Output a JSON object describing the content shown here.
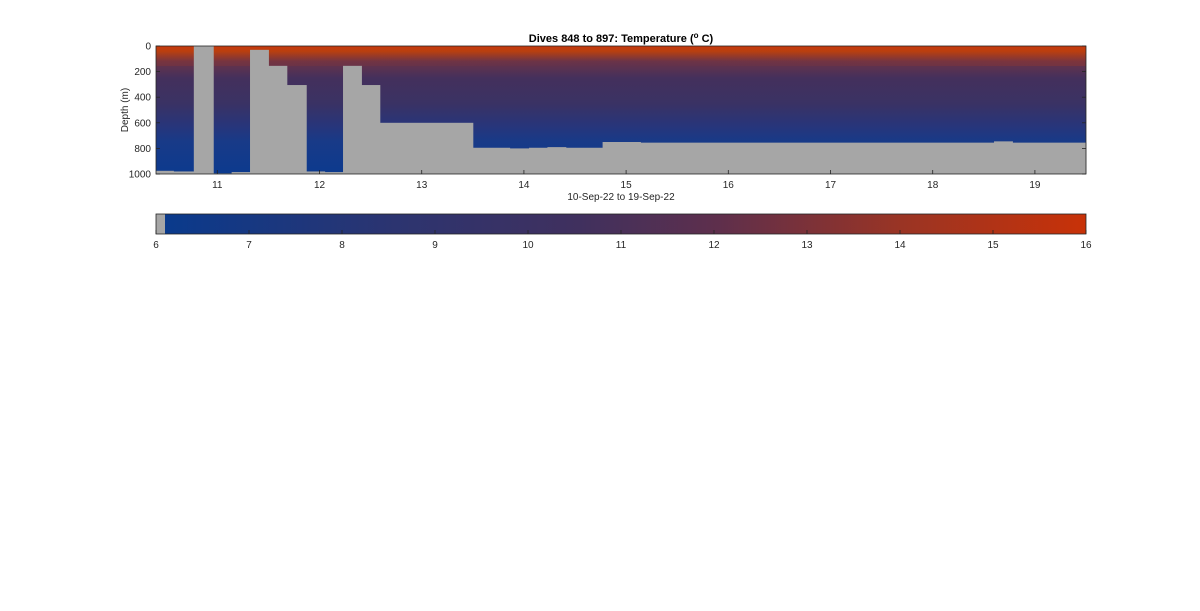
{
  "chart_data": {
    "type": "heatmap",
    "title": {
      "prefix": "Dives 848 to 897: Temperature (",
      "superscript": "o",
      "suffix": " C)"
    },
    "xlabel": "10-Sep-22 to 19-Sep-22",
    "ylabel": "Depth (m)",
    "xlim": [
      10.4,
      19.5
    ],
    "ylim": [
      0,
      1000
    ],
    "y_reversed": true,
    "x_ticks": [
      "11",
      "12",
      "13",
      "14",
      "15",
      "16",
      "17",
      "18",
      "19"
    ],
    "x_tick_values": [
      11,
      12,
      13,
      14,
      15,
      16,
      17,
      18,
      19
    ],
    "y_ticks": [
      "0",
      "200",
      "400",
      "600",
      "800",
      "1000"
    ],
    "y_tick_values": [
      0,
      200,
      400,
      600,
      800,
      1000
    ],
    "colorbar": {
      "min": 6,
      "max": 16,
      "ticks": [
        "6",
        "7",
        "8",
        "9",
        "10",
        "11",
        "12",
        "13",
        "14",
        "15",
        "16"
      ],
      "tick_values": [
        6,
        7,
        8,
        9,
        10,
        11,
        12,
        13,
        14,
        15,
        16
      ],
      "color_low": "#0a3a8c",
      "color_mid": "#40305e",
      "color_high": "#c83208",
      "nodata_color": "#a6a6a6"
    },
    "dive_max_depth": [
      {
        "x0": 10.4,
        "x1": 10.57,
        "depth": 975
      },
      {
        "x0": 10.57,
        "x1": 10.77,
        "depth": 980
      },
      {
        "x0": 10.77,
        "x1": 10.96,
        "depth": 0
      },
      {
        "x0": 10.96,
        "x1": 11.14,
        "depth": 995
      },
      {
        "x0": 11.14,
        "x1": 11.32,
        "depth": 985
      },
      {
        "x0": 11.32,
        "x1": 11.5,
        "depth": 30
      },
      {
        "x0": 11.5,
        "x1": 11.68,
        "depth": 155
      },
      {
        "x0": 11.68,
        "x1": 11.87,
        "depth": 305
      },
      {
        "x0": 11.87,
        "x1": 12.05,
        "depth": 980
      },
      {
        "x0": 12.05,
        "x1": 12.23,
        "depth": 985
      },
      {
        "x0": 12.23,
        "x1": 12.41,
        "depth": 155
      },
      {
        "x0": 12.41,
        "x1": 12.59,
        "depth": 305
      },
      {
        "x0": 12.59,
        "x1": 13.5,
        "depth": 600
      },
      {
        "x0": 13.5,
        "x1": 13.86,
        "depth": 795
      },
      {
        "x0": 13.86,
        "x1": 14.05,
        "depth": 800
      },
      {
        "x0": 14.05,
        "x1": 14.23,
        "depth": 795
      },
      {
        "x0": 14.23,
        "x1": 14.41,
        "depth": 790
      },
      {
        "x0": 14.41,
        "x1": 14.77,
        "depth": 795
      },
      {
        "x0": 14.77,
        "x1": 15.14,
        "depth": 750
      },
      {
        "x0": 15.14,
        "x1": 18.6,
        "depth": 755
      },
      {
        "x0": 18.6,
        "x1": 18.78,
        "depth": 745
      },
      {
        "x0": 18.78,
        "x1": 19.5,
        "depth": 755
      }
    ]
  }
}
